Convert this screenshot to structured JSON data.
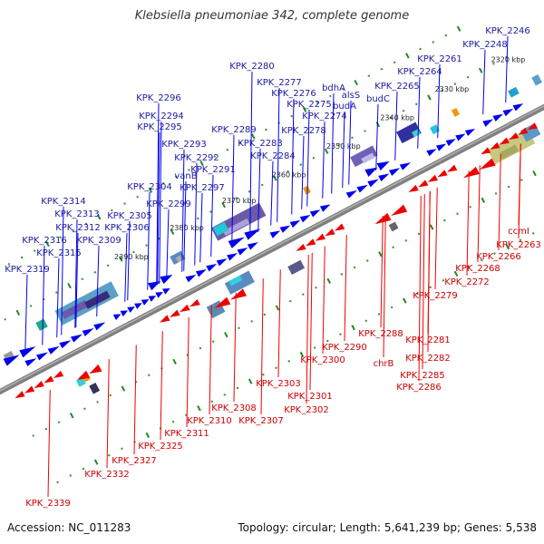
{
  "title": "Klebsiella pneumoniae 342, complete genome",
  "accession_label": "Accession: NC_011283",
  "summary_label": "Topology: circular; Length: 5,641,239 bp; Genes: 5,538",
  "colors": {
    "forward": "#0000ee",
    "reverse": "#ee0000",
    "label_forward": "#1a1aa0",
    "label_reverse": "#cc0000",
    "backbone": "#808080",
    "tick": "#228822",
    "scale_text": "#222222"
  },
  "scale_marks": [
    {
      "label": "2320 kbp"
    },
    {
      "label": "2330 kbp"
    },
    {
      "label": "2340 kbp"
    },
    {
      "label": "2350 kbp"
    },
    {
      "label": "2360 kbp"
    },
    {
      "label": "2370 kbp"
    },
    {
      "label": "2380 kbp"
    },
    {
      "label": "2390 kbp"
    }
  ],
  "forward_labels": [
    "KPK_2246",
    "KPK_2248",
    "KPK_2261",
    "KPK_2264",
    "KPK_2265",
    "budC",
    "alsS",
    "bdhA",
    "budA",
    "KPK_2280",
    "KPK_2277",
    "KPK_2276",
    "KPK_2275",
    "KPK_2274",
    "KPK_2278",
    "KPK_2283",
    "KPK_2284",
    "KPK_2296",
    "KPK_2294",
    "KPK_2295",
    "KPK_2289",
    "KPK_2293",
    "KPK_2292",
    "KPK_2291",
    "vanB",
    "KPK_2297",
    "KPK_2304",
    "KPK_2299",
    "KPK_2305",
    "KPK_2306",
    "KPK_2314",
    "KPK_2313",
    "KPK_2312",
    "KPK_2309",
    "KPK_2316",
    "KPK_2315",
    "KPK_2319"
  ],
  "reverse_labels": [
    "ccmI",
    "KPK_2263",
    "KPK_2266",
    "KPK_2268",
    "KPK_2272",
    "KPK_2279",
    "KPK_2281",
    "KPK_2282",
    "KPK_2288",
    "KPK_2290",
    "chrB",
    "KPK_2285",
    "KPK_2286",
    "KPK_2300",
    "KPK_2301",
    "KPK_2303",
    "KPK_2302",
    "KPK_2307",
    "KPK_2308",
    "KPK_2310",
    "KPK_2311",
    "KPK_2325",
    "KPK_2327",
    "KPK_2332",
    "KPK_2339"
  ]
}
